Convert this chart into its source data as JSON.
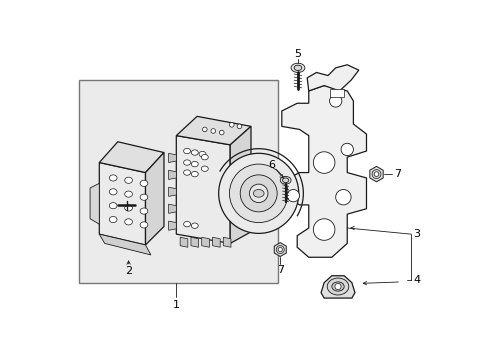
{
  "bg_color": "#ffffff",
  "lc": "#1a1a1a",
  "fill_light": "#f5f5f5",
  "fill_mid": "#e8e8e8",
  "fill_dark": "#d8d8d8",
  "box_bg": "#ebebeb",
  "figsize": [
    4.89,
    3.6
  ],
  "dpi": 100
}
